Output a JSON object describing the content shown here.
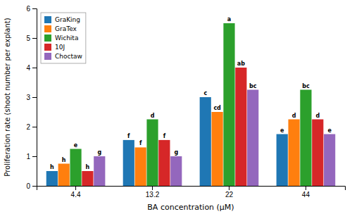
{
  "chart_data": {
    "type": "bar",
    "xlabel": "BA concentration (µM)",
    "ylabel": "Proliferation rate (shoot number per explant)",
    "categories": [
      "4.4",
      "13.2",
      "22",
      "44"
    ],
    "series": [
      {
        "name": "GraKing",
        "values": [
          0.5,
          1.55,
          3.0,
          1.75
        ],
        "annotations": [
          "h",
          "f",
          "c",
          "e"
        ]
      },
      {
        "name": "GraTex",
        "values": [
          0.75,
          1.3,
          2.5,
          2.25
        ],
        "annotations": [
          "h",
          "f",
          "cd",
          "d"
        ]
      },
      {
        "name": "Wichita",
        "values": [
          1.25,
          2.25,
          5.5,
          3.25
        ],
        "annotations": [
          "e",
          "d",
          "a",
          "bc"
        ]
      },
      {
        "name": "10J",
        "values": [
          0.5,
          1.55,
          4.0,
          2.25
        ],
        "annotations": [
          "h",
          "f",
          "ab",
          "d"
        ]
      },
      {
        "name": "Choctaw",
        "values": [
          1.0,
          1.0,
          3.25,
          1.75
        ],
        "annotations": [
          "g",
          "g",
          "bc",
          "e"
        ]
      }
    ],
    "ylim": [
      0,
      6
    ],
    "yticks": [
      0,
      1,
      2,
      3,
      4,
      5,
      6
    ],
    "grid": false,
    "legend": "upper left"
  }
}
